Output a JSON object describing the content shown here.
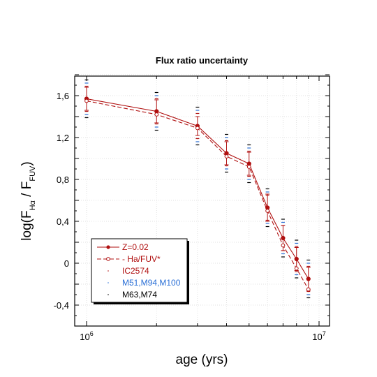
{
  "chart_data": {
    "type": "line",
    "title": "Flux ratio uncertainty",
    "xlabel": "age (yrs)",
    "ylabel": {
      "prefix": "log(F",
      "sub1": "Hα",
      "mid": " / F",
      "sub2": "FUV",
      "suffix": ")"
    },
    "x_scale": "log",
    "xlim": [
      1000000,
      10000000
    ],
    "ylim": [
      -0.6,
      1.8
    ],
    "x_ticks": [
      {
        "value": 1000000,
        "base": "10",
        "exp": "6"
      },
      {
        "value": 10000000,
        "base": "10",
        "exp": "7"
      }
    ],
    "y_ticks": [
      {
        "value": -0.4,
        "label": "-0,4"
      },
      {
        "value": 0,
        "label": "0"
      },
      {
        "value": 0.4,
        "label": "0,4"
      },
      {
        "value": 0.8,
        "label": "0,8"
      },
      {
        "value": 1.2,
        "label": "1,2"
      },
      {
        "value": 1.6,
        "label": "1,6"
      }
    ],
    "grid": true,
    "legend_position": "bottom-left",
    "x": [
      1000000,
      2000000,
      3000000,
      4000000,
      5000000,
      6000000,
      7000000,
      8000000,
      9000000
    ],
    "series": [
      {
        "name": "Z=0.02",
        "style": "solid",
        "marker": "filled-circle",
        "color": "#b01010",
        "values": [
          1.57,
          1.45,
          1.31,
          1.05,
          0.95,
          0.53,
          0.24,
          0.04,
          -0.15
        ],
        "err": [
          0.11,
          0.11,
          0.09,
          0.11,
          0.11,
          0.13,
          0.12,
          0.11,
          0.11
        ]
      },
      {
        "name": "Ha/FUV*",
        "style": "dashed",
        "marker": "open-circle",
        "color": "#b01010",
        "values": [
          1.55,
          1.42,
          1.29,
          1.02,
          0.92,
          0.5,
          0.17,
          -0.05,
          -0.25
        ],
        "err": [
          0.11,
          0.11,
          0.11,
          0.11,
          0.11,
          0.12,
          0.11,
          0.11,
          0.11
        ]
      }
    ],
    "marker_series": [
      {
        "name": "IC2574",
        "color": "#b01010",
        "offsets": [
          0.12,
          -0.12
        ]
      },
      {
        "name": "M51,M94,M100",
        "color": "#2a6fd6",
        "offsets": [
          0.15,
          -0.15
        ]
      },
      {
        "name": "M63,M74",
        "color": "#000000",
        "offsets": [
          0.18,
          -0.18
        ]
      }
    ]
  }
}
